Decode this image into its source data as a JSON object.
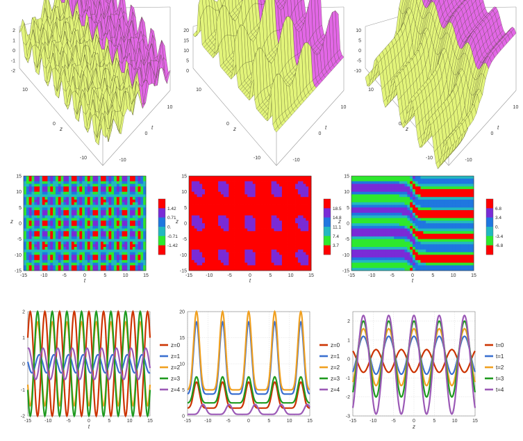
{
  "colors": {
    "surface_front": "#e2f47a",
    "surface_back": "#e267e6",
    "contour_levels": [
      "#ff0000",
      "#2ee82e",
      "#22b8c0",
      "#1f77e0",
      "#7a2bd6",
      "#ff0000"
    ],
    "series": [
      "#cc3300",
      "#3a6fd0",
      "#f0a020",
      "#1e9a1e",
      "#9b59b6"
    ]
  },
  "row1_surfaces": [
    {
      "type": "surface3d",
      "z_ticks": [
        "2",
        "1",
        "0",
        "-1",
        "-2"
      ],
      "zaxis_label": "z",
      "zaxis_ticks": [
        "10",
        "0",
        "-10"
      ],
      "taxis_label": "t",
      "taxis_ticks": [
        "10",
        "0",
        "-10"
      ]
    },
    {
      "type": "surface3d",
      "z_ticks": [
        "20",
        "15",
        "10",
        "5",
        "0"
      ],
      "zaxis_label": "z",
      "zaxis_ticks": [
        "10",
        "0",
        "-10"
      ],
      "taxis_label": "t",
      "taxis_ticks": [
        "10",
        "0",
        "-10"
      ]
    },
    {
      "type": "surface3d",
      "z_ticks": [
        "10",
        "5",
        "0",
        "-5",
        "-10"
      ],
      "zaxis_label": "z",
      "zaxis_ticks": [
        "10",
        "0",
        "-10"
      ],
      "taxis_label": "t",
      "taxis_ticks": [
        "10",
        "0",
        "-10"
      ]
    }
  ],
  "chart_data": [
    {
      "type": "heatmap",
      "xlabel": "t",
      "ylabel": "z",
      "xlim": [
        -15,
        15
      ],
      "ylim": [
        -15,
        15
      ],
      "x_ticks": [
        "-15",
        "-10",
        "-5",
        "0",
        "5",
        "10",
        "15"
      ],
      "y_ticks": [
        "15",
        "10",
        "5",
        "0",
        "-5",
        "-10",
        "-15"
      ],
      "colorbar_labels": [
        "1.42",
        "0.71",
        "0.",
        "-0.71",
        "-1.42"
      ],
      "pattern": "checker"
    },
    {
      "type": "heatmap",
      "xlabel": "t",
      "ylabel": "z",
      "xlim": [
        -15,
        15
      ],
      "ylim": [
        -15,
        15
      ],
      "x_ticks": [
        "-15",
        "-10",
        "-5",
        "0",
        "5",
        "10",
        "15"
      ],
      "y_ticks": [
        "15",
        "10",
        "5",
        "0",
        "-5",
        "-10",
        "-15"
      ],
      "colorbar_labels": [
        "18.5",
        "14.8",
        "11.1",
        "7.4",
        "3.7"
      ],
      "pattern": "spots"
    },
    {
      "type": "heatmap",
      "xlabel": "t",
      "ylabel": "z",
      "xlim": [
        -15,
        15
      ],
      "ylim": [
        -15,
        15
      ],
      "x_ticks": [
        "-15",
        "-10",
        "-5",
        "0",
        "5",
        "10",
        "15"
      ],
      "y_ticks": [
        "15",
        "10",
        "5",
        "0",
        "-5",
        "-10",
        "-15"
      ],
      "colorbar_labels": [
        "6.8",
        "3.4",
        "0.",
        "-3.4",
        "-6.8"
      ],
      "pattern": "kink"
    },
    {
      "type": "line",
      "xlabel": "t",
      "ylabel": "",
      "xlim": [
        -15,
        15
      ],
      "ylim": [
        -2,
        2
      ],
      "x_ticks": [
        "-15",
        "-10",
        "-5",
        "0",
        "5",
        "10",
        "15"
      ],
      "y_ticks": [
        "2",
        "1",
        "0",
        "-1",
        "-2"
      ],
      "y_tick_values": [
        2,
        1,
        0,
        -1,
        -2
      ],
      "legend_position": "right",
      "series": [
        {
          "name": "z=0",
          "amp": 2.0,
          "offset": 0.0,
          "period": 3.6,
          "phase": 0.0
        },
        {
          "name": "z=1",
          "amp": 0.35,
          "offset": 0.0,
          "period": 3.6,
          "phase": 2.4
        },
        {
          "name": "z=2",
          "amp": 1.6,
          "offset": 0.0,
          "period": 3.6,
          "phase": 3.14
        },
        {
          "name": "z=3",
          "amp": 2.0,
          "offset": 0.0,
          "period": 3.6,
          "phase": 3.14
        },
        {
          "name": "z=4",
          "amp": 0.6,
          "offset": 0.0,
          "period": 3.6,
          "phase": 0.8
        }
      ]
    },
    {
      "type": "line",
      "xlabel": "",
      "ylabel": "",
      "xlim": [
        -15,
        15
      ],
      "ylim": [
        0,
        20
      ],
      "x_ticks": [
        "-15",
        "-10",
        "-5",
        "0",
        "5",
        "10",
        "15"
      ],
      "y_ticks": [
        "20",
        "15",
        "10",
        "5",
        "0"
      ],
      "y_tick_values": [
        20,
        15,
        10,
        5,
        0
      ],
      "legend_position": "right",
      "series": [
        {
          "name": "z=0",
          "peak": 6.5,
          "base": 1.5,
          "period": 6.4,
          "center": 0.0
        },
        {
          "name": "z=1",
          "peak": 18.0,
          "base": 4.2,
          "period": 6.4,
          "center": 0.0
        },
        {
          "name": "z=2",
          "peak": 20.0,
          "base": 5.0,
          "period": 6.4,
          "center": 0.0
        },
        {
          "name": "z=3",
          "peak": 7.5,
          "base": 2.5,
          "period": 6.4,
          "center": 0.0
        },
        {
          "name": "z=4",
          "peak": 2.2,
          "base": 0.3,
          "period": 6.4,
          "center": 1.6
        }
      ]
    },
    {
      "type": "line",
      "xlabel": "z",
      "ylabel": "",
      "xlim": [
        -15,
        15
      ],
      "ylim": [
        -3,
        2.5
      ],
      "x_ticks": [
        "-15",
        "-10",
        "-5",
        "0",
        "5",
        "10",
        "15"
      ],
      "y_ticks": [
        "2",
        "1",
        "0",
        "-1",
        "-2",
        "-3"
      ],
      "y_tick_values": [
        2,
        1,
        0,
        -1,
        -2,
        -3
      ],
      "legend_position": "right",
      "series": [
        {
          "name": "t=0",
          "amp": 0.6,
          "offset": -0.1,
          "period": 6.2,
          "phase": 3.14
        },
        {
          "name": "t=1",
          "amp": 1.0,
          "offset": 0.2,
          "period": 6.2,
          "phase": 0.0
        },
        {
          "name": "t=2",
          "amp": 1.5,
          "offset": 0.1,
          "period": 6.2,
          "phase": 0.0
        },
        {
          "name": "t=3",
          "amp": 2.0,
          "offset": 0.0,
          "period": 6.2,
          "phase": 0.0
        },
        {
          "name": "t=4",
          "amp": 2.6,
          "offset": -0.3,
          "period": 6.2,
          "phase": 0.0
        }
      ]
    }
  ]
}
